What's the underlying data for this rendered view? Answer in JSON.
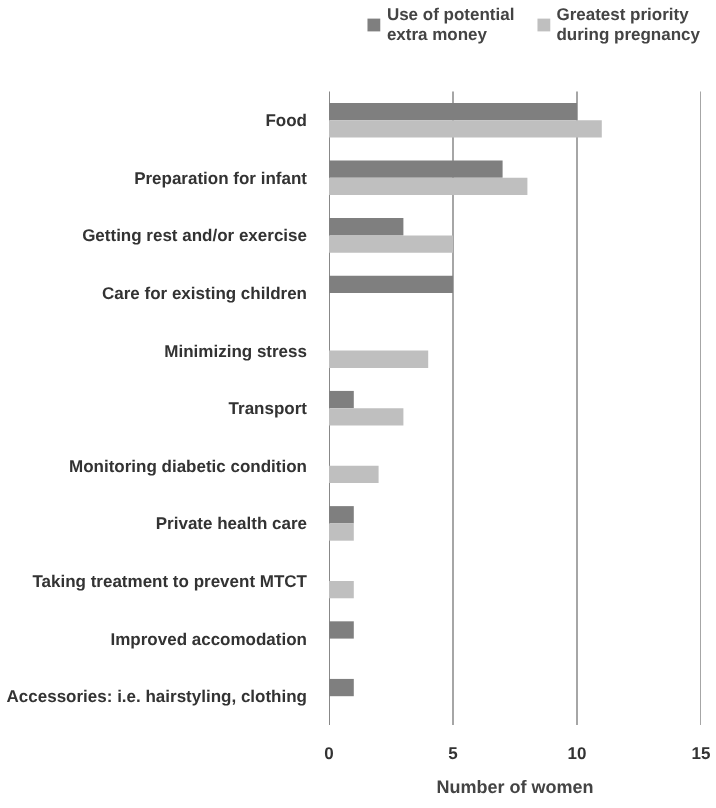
{
  "chart_data": {
    "type": "bar",
    "orientation": "horizontal",
    "xlabel": "Number of women",
    "categories": [
      "Food",
      "Preparation for infant",
      "Getting rest and/or exercise",
      "Care for existing children",
      "Minimizing stress",
      "Transport",
      "Monitoring diabetic condition",
      "Private health care",
      "Taking treatment to prevent MTCT",
      "Improved accomodation",
      "Accessories: i.e. hairstyling, clothing"
    ],
    "series": [
      {
        "name": "Use of potential extra money",
        "color": "#7f7f7f",
        "values": [
          10,
          7,
          3,
          5,
          null,
          1,
          null,
          1,
          null,
          1,
          1
        ]
      },
      {
        "name": "Greatest priority during pregnancy",
        "color": "#bfbfbf",
        "values": [
          11,
          8,
          5,
          null,
          4,
          3,
          2,
          1,
          1,
          null,
          null
        ]
      }
    ],
    "xlim": [
      0,
      15
    ],
    "xticks": [
      0,
      5,
      10,
      15
    ],
    "grid": "x",
    "legend": "top right"
  }
}
